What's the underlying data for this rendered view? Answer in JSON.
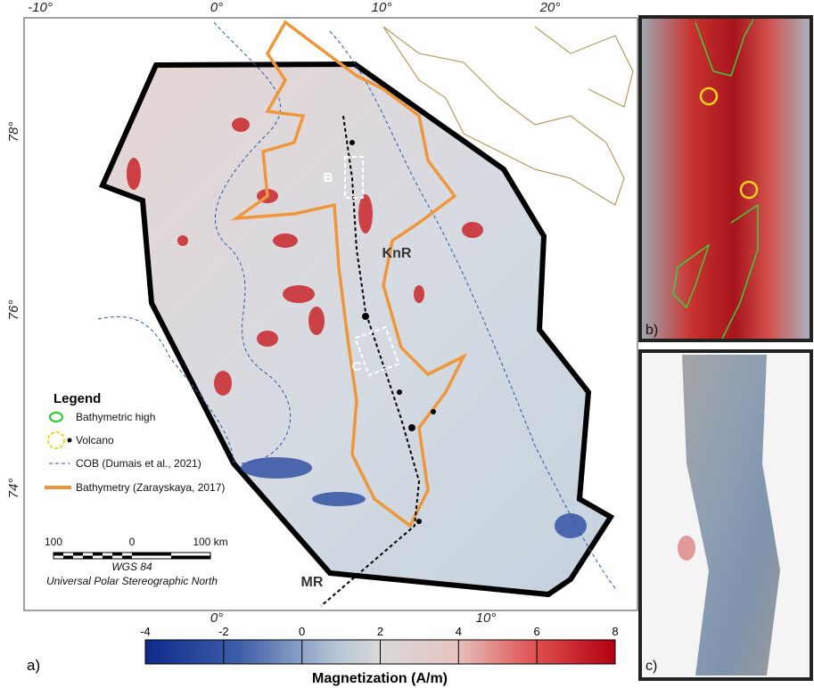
{
  "map": {
    "lon_top": [
      "-10°",
      "0°",
      "10°",
      "20°"
    ],
    "lon_bottom": [
      "0°",
      "10°"
    ],
    "lat": [
      "78°",
      "76°",
      "74°"
    ],
    "labels": [
      "B",
      "C",
      "KnR",
      "MR"
    ]
  },
  "legend": {
    "title": "Legend",
    "items": [
      "Bathymetric high",
      "Volcano",
      "COB (Dumais et al., 2021)",
      "Bathymetry (Zarayskaya, 2017)"
    ]
  },
  "scale_bar": {
    "labels": [
      "100",
      "0",
      "100 km"
    ],
    "datum": "WGS 84",
    "projection": "Universal Polar Stereographic North"
  },
  "colorbar": {
    "label": "Magnetization (A/m)",
    "lim": [
      -4,
      8
    ],
    "ticks": [
      -4,
      -2,
      0,
      2,
      4,
      6,
      8
    ]
  },
  "panels": [
    "a)",
    "b)",
    "c)"
  ]
}
